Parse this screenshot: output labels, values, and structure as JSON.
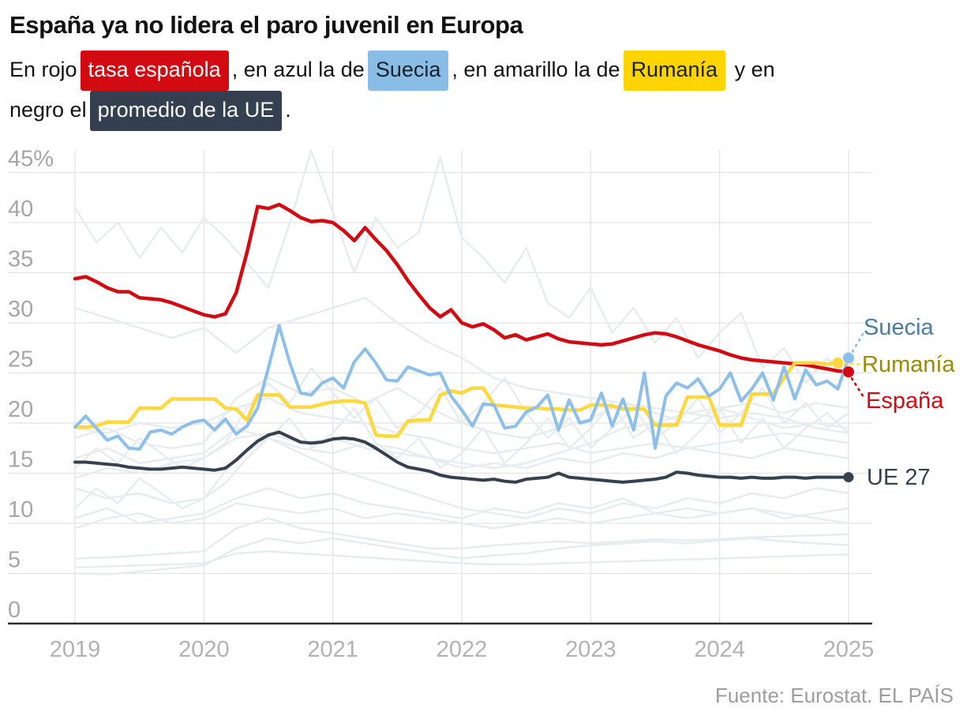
{
  "header": {
    "title": "España ya no lidera el paro juvenil en Europa"
  },
  "subtitle": {
    "part1": "En rojo",
    "badge_spain": "tasa española",
    "part2": ", en azul la de",
    "badge_sweden": "Suecia",
    "part3": ", en amarillo la de",
    "badge_romania": "Rumanía",
    "part4": " y en",
    "part5": "negro el",
    "badge_eu": "promedio de la UE",
    "part6": "."
  },
  "legend": {
    "sweden": "Suecia",
    "romania": "Rumanía",
    "spain": "España",
    "eu": "UE 27"
  },
  "footer": {
    "source": "Fuente: Eurostat. EL PAÍS"
  },
  "colors": {
    "spain": "#d20a11",
    "sweden": "#8cc0ea",
    "romania": "#ffd83e",
    "eu": "#36404e",
    "background_lines": "#e7ecef",
    "gridline": "#e3e3e3",
    "zero_axis": "#2e2e2e",
    "tick_label": "#a6a6a6",
    "year_label": "#b2b2b2"
  },
  "chart_data": {
    "type": "line",
    "unit": "%",
    "x_start_year": 2019,
    "x_ticks": [
      "2019",
      "2020",
      "2021",
      "2022",
      "2023",
      "2024",
      "2025"
    ],
    "y_ticks": [
      {
        "v": 45,
        "label": "45%"
      },
      {
        "v": 40,
        "label": "40"
      },
      {
        "v": 35,
        "label": "35"
      },
      {
        "v": 30,
        "label": "30"
      },
      {
        "v": 25,
        "label": "25"
      },
      {
        "v": 20,
        "label": "20"
      },
      {
        "v": 15,
        "label": "15"
      },
      {
        "v": 10,
        "label": "10"
      },
      {
        "v": 5,
        "label": "5"
      },
      {
        "v": 0,
        "label": "0"
      }
    ],
    "ylim": [
      0,
      47
    ],
    "grid": true,
    "legend_position": "right",
    "series": [
      {
        "name": "España",
        "key": "spain",
        "color": "#d20a11",
        "width": 4.5,
        "dot": 7,
        "step_months": 1,
        "values": [
          34.4,
          34.6,
          34.1,
          33.5,
          33.1,
          33.1,
          32.5,
          32.4,
          32.3,
          32.0,
          31.6,
          31.2,
          30.8,
          30.6,
          30.9,
          33.0,
          37.0,
          41.6,
          41.4,
          41.8,
          41.2,
          40.5,
          40.1,
          40.2,
          40.0,
          39.2,
          38.2,
          39.5,
          38.3,
          37.2,
          35.8,
          34.2,
          32.8,
          31.5,
          30.6,
          31.3,
          30.0,
          29.6,
          29.9,
          29.3,
          28.5,
          28.8,
          28.3,
          28.6,
          28.9,
          28.4,
          28.1,
          28.0,
          27.9,
          27.8,
          27.9,
          28.2,
          28.5,
          28.8,
          29.0,
          28.9,
          28.6,
          28.2,
          27.8,
          27.5,
          27.2,
          26.8,
          26.5,
          26.3,
          26.2,
          26.1,
          26.0,
          25.9,
          25.8,
          25.6,
          25.4,
          25.2,
          25.1
        ]
      },
      {
        "name": "Suecia",
        "key": "sweden",
        "color": "#8cc0ea",
        "width": 4,
        "dot": 7,
        "step_months": 1,
        "values": [
          19.6,
          20.7,
          19.5,
          18.3,
          18.7,
          17.5,
          17.4,
          19.1,
          19.3,
          18.9,
          19.6,
          20.1,
          20.3,
          19.3,
          20.4,
          18.9,
          19.7,
          21.5,
          25.5,
          29.7,
          26.0,
          23.0,
          22.8,
          24.0,
          24.5,
          23.5,
          26.1,
          27.4,
          26.0,
          24.3,
          24.2,
          25.6,
          25.2,
          24.8,
          25.0,
          22.7,
          21.3,
          19.7,
          21.9,
          21.8,
          19.5,
          19.7,
          21.1,
          21.6,
          22.8,
          19.3,
          22.3,
          20.0,
          20.3,
          23.0,
          19.7,
          22.4,
          19.3,
          25.0,
          17.5,
          22.7,
          24.0,
          23.5,
          24.4,
          22.7,
          23.4,
          25.0,
          22.2,
          23.4,
          25.0,
          22.3,
          25.6,
          22.4,
          25.3,
          23.8,
          24.2,
          23.4,
          26.5
        ]
      },
      {
        "name": "Rumanía",
        "key": "romania",
        "color": "#ffd83e",
        "width": 4.5,
        "dot": 7,
        "step_months": 1,
        "values": [
          19.6,
          19.6,
          19.7,
          20.1,
          20.1,
          20.1,
          21.5,
          21.5,
          21.5,
          22.4,
          22.4,
          22.4,
          22.4,
          22.4,
          21.5,
          21.4,
          20.3,
          22.8,
          22.8,
          22.8,
          21.6,
          21.6,
          21.6,
          21.9,
          22.1,
          22.2,
          22.2,
          22.0,
          18.8,
          18.7,
          18.7,
          20.2,
          20.3,
          20.3,
          22.8,
          23.2,
          23.0,
          23.5,
          23.5,
          21.8,
          21.7,
          21.6,
          21.5,
          21.5,
          21.4,
          21.4,
          21.3,
          21.3,
          21.8,
          21.8,
          21.7,
          21.4,
          21.4,
          21.4,
          19.8,
          19.8,
          19.8,
          22.6,
          22.6,
          22.6,
          19.8,
          19.8,
          19.8,
          22.9,
          22.9,
          22.9,
          24.5,
          26.0,
          26.0,
          26.0,
          25.9,
          26.0
        ]
      },
      {
        "name": "UE 27",
        "key": "eu",
        "color": "#36404e",
        "width": 4,
        "dot": 6.5,
        "step_months": 1,
        "values": [
          16.1,
          16.1,
          16.0,
          15.9,
          15.8,
          15.6,
          15.5,
          15.4,
          15.4,
          15.5,
          15.6,
          15.5,
          15.4,
          15.3,
          15.5,
          16.3,
          17.3,
          18.2,
          18.8,
          19.1,
          18.6,
          18.1,
          18.0,
          18.1,
          18.4,
          18.5,
          18.4,
          18.1,
          17.5,
          16.8,
          16.1,
          15.6,
          15.4,
          15.2,
          14.8,
          14.6,
          14.5,
          14.4,
          14.3,
          14.4,
          14.2,
          14.1,
          14.4,
          14.5,
          14.6,
          15.0,
          14.6,
          14.5,
          14.4,
          14.3,
          14.2,
          14.1,
          14.2,
          14.3,
          14.4,
          14.6,
          15.1,
          15.0,
          14.8,
          14.7,
          14.6,
          14.6,
          14.5,
          14.6,
          14.5,
          14.5,
          14.6,
          14.6,
          14.5,
          14.6,
          14.6,
          14.6,
          14.6
        ]
      }
    ],
    "background_series": [
      {
        "step_months": 2,
        "values": [
          41.5,
          38.0,
          40.0,
          36.5,
          39.5,
          37.0,
          40.5,
          38.5,
          36.0,
          33.5,
          40.0,
          47.2,
          41.0,
          35.0,
          40.5,
          37.5,
          39.0,
          46.5,
          38.5,
          36.5,
          34.0,
          37.5,
          32.0,
          30.5,
          33.5,
          29.0,
          31.5,
          28.0,
          30.5,
          26.5,
          29.0,
          31.0,
          25.5,
          27.5,
          24.0,
          26.5,
          24.5
        ]
      },
      {
        "step_months": 3,
        "values": [
          31.5,
          30.5,
          29.5,
          28.5,
          29.5,
          27.0,
          29.5,
          30.5,
          31.5,
          32.5,
          30.0,
          28.0,
          26.5,
          24.5,
          23.5,
          23.0,
          22.5,
          22.0,
          21.5,
          21.0,
          20.5,
          21.0,
          20.5,
          19.5,
          19.0
        ]
      },
      {
        "step_months": 3,
        "values": [
          18.5,
          19.5,
          18.0,
          17.5,
          18.0,
          22.5,
          24.5,
          23.0,
          23.5,
          22.0,
          23.5,
          21.5,
          20.0,
          19.0,
          18.5,
          19.5,
          20.5,
          22.0,
          21.0,
          20.0,
          21.5,
          20.5,
          19.5,
          20.0,
          19.5
        ]
      },
      {
        "step_months": 3,
        "values": [
          19.5,
          19.0,
          20.0,
          19.5,
          20.0,
          21.5,
          22.5,
          21.0,
          20.5,
          20.0,
          19.0,
          18.5,
          17.5,
          17.0,
          17.5,
          18.0,
          17.0,
          17.5,
          18.0,
          17.5,
          18.0,
          18.5,
          19.0,
          18.5,
          18.0
        ]
      },
      {
        "step_months": 3,
        "values": [
          16.5,
          17.5,
          16.0,
          16.5,
          17.0,
          19.5,
          18.5,
          17.5,
          17.0,
          18.0,
          17.5,
          16.5,
          15.5,
          16.0,
          15.5,
          16.5,
          16.0,
          17.0,
          16.5,
          17.5,
          17.0,
          16.5,
          17.5,
          17.0,
          16.5
        ]
      },
      {
        "step_months": 3,
        "values": [
          14.5,
          15.5,
          15.0,
          16.0,
          16.5,
          18.5,
          19.0,
          18.0,
          18.5,
          17.5,
          17.0,
          16.5,
          16.0,
          15.5,
          16.0,
          17.0,
          18.0,
          19.5,
          20.0,
          21.0,
          21.5,
          22.0,
          21.0,
          22.0,
          21.5
        ]
      },
      {
        "step_months": 3,
        "values": [
          13.5,
          12.5,
          13.0,
          12.0,
          12.5,
          16.5,
          18.5,
          17.0,
          15.5,
          14.5,
          13.5,
          12.5,
          11.5,
          11.0,
          10.5,
          11.5,
          11.0,
          12.0,
          11.5,
          12.5,
          12.0,
          13.0,
          12.5,
          13.5,
          13.0
        ]
      },
      {
        "step_months": 3,
        "values": [
          10.5,
          11.5,
          10.0,
          10.5,
          11.0,
          12.5,
          13.5,
          12.5,
          13.0,
          12.0,
          11.5,
          11.0,
          10.5,
          11.5,
          11.0,
          12.0,
          11.5,
          12.5,
          11.0,
          11.5,
          11.0,
          11.5,
          10.5,
          11.0,
          11.5
        ]
      },
      {
        "step_months": 3,
        "values": [
          9.5,
          10.5,
          11.0,
          10.0,
          10.5,
          12.0,
          11.5,
          11.0,
          11.5,
          10.5,
          11.0,
          10.5,
          10.0,
          9.5,
          10.0,
          10.5,
          10.0,
          10.5,
          11.0,
          10.5,
          11.0,
          11.5,
          11.0,
          10.5,
          10.0
        ]
      },
      {
        "step_months": 3,
        "values": [
          6.5,
          6.6,
          6.8,
          7.0,
          7.2,
          9.5,
          10.5,
          9.5,
          9.0,
          8.5,
          8.0,
          7.5,
          7.5,
          7.8,
          8.0,
          8.2,
          8.0,
          8.2,
          8.4,
          8.3,
          8.4,
          8.6,
          8.7,
          8.8,
          8.9
        ]
      },
      {
        "step_months": 3,
        "values": [
          5.6,
          5.7,
          5.8,
          5.9,
          6.0,
          7.0,
          7.2,
          7.0,
          6.8,
          6.6,
          6.4,
          6.2,
          6.0,
          5.9,
          5.9,
          6.0,
          6.1,
          6.2,
          6.3,
          6.4,
          6.5,
          6.6,
          6.7,
          6.8,
          6.9
        ]
      },
      {
        "step_months": 3,
        "values": [
          5.0,
          4.9,
          5.2,
          5.5,
          5.8,
          7.5,
          8.5,
          8.0,
          8.5,
          8.0,
          7.5,
          7.0,
          6.5,
          6.8,
          7.0,
          7.5,
          7.8,
          8.0,
          8.2,
          8.0,
          8.3,
          8.5,
          8.2,
          8.0,
          7.8
        ]
      },
      {
        "step_months": 2,
        "values": [
          11.5,
          13.5,
          12.0,
          14.5,
          13.0,
          11.5,
          12.5,
          14.0,
          16.5,
          18.5,
          20.5,
          17.5,
          19.0,
          21.5,
          18.0,
          16.5,
          18.5,
          15.5,
          17.0,
          19.5,
          16.0,
          18.0,
          20.5,
          17.5,
          19.5,
          22.0,
          18.5,
          20.0,
          17.0,
          19.0,
          21.5,
          18.0,
          20.5,
          17.5,
          19.5,
          21.0,
          19.0
        ]
      },
      {
        "step_months": 2,
        "values": [
          15.5,
          17.5,
          16.0,
          18.5,
          17.0,
          15.5,
          16.5,
          18.0,
          21.5,
          24.0,
          22.0,
          25.5,
          23.0,
          20.5,
          22.5,
          19.5,
          21.0,
          23.5,
          20.0,
          22.0,
          24.5,
          21.0,
          18.5,
          20.5,
          17.5,
          19.5,
          21.5,
          18.5,
          20.0,
          22.5,
          19.0,
          21.0,
          23.5,
          20.0,
          22.0,
          19.5,
          21.0
        ]
      }
    ]
  }
}
